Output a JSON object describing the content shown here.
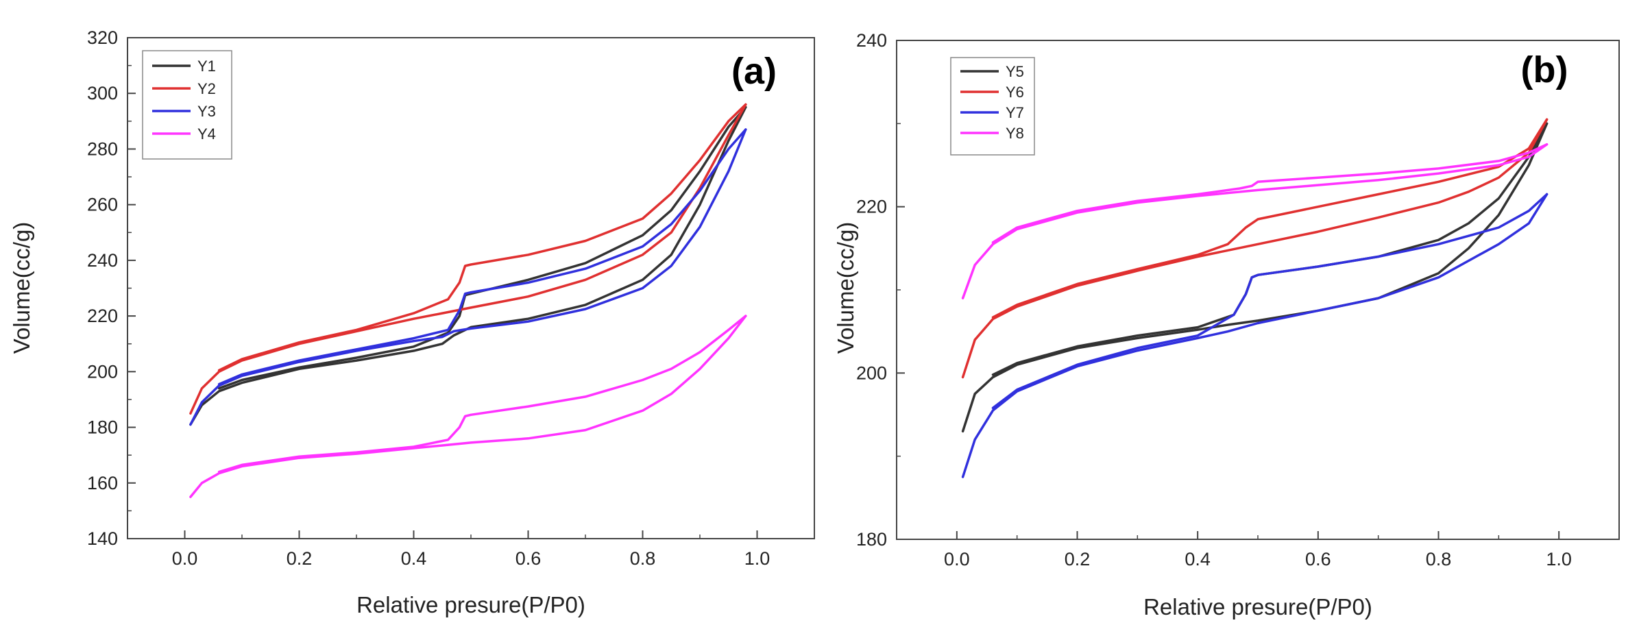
{
  "chart_data": [
    {
      "type": "line",
      "panel_label": "(a)",
      "xlabel": "Relative presure(P/P0)",
      "ylabel": "Volume(cc/g)",
      "xlim": [
        -0.1,
        1.1
      ],
      "ylim": [
        140,
        320
      ],
      "xticks": [
        "0.0",
        "0.2",
        "0.4",
        "0.6",
        "0.8",
        "1.0"
      ],
      "xtick_values": [
        0,
        0.2,
        0.4,
        0.6,
        0.8,
        1.0
      ],
      "yticks": [
        "140",
        "160",
        "180",
        "200",
        "220",
        "240",
        "260",
        "280",
        "300",
        "320"
      ],
      "ytick_values": [
        140,
        160,
        180,
        200,
        220,
        240,
        260,
        280,
        300,
        320
      ],
      "legend_position": "top-left",
      "series": [
        {
          "name": "Y1",
          "color": "#333333",
          "adsorption": [
            [
              0.01,
              181
            ],
            [
              0.03,
              188
            ],
            [
              0.06,
              193
            ],
            [
              0.1,
              196
            ],
            [
              0.2,
              201
            ],
            [
              0.3,
              204
            ],
            [
              0.4,
              207.5
            ],
            [
              0.45,
              210
            ],
            [
              0.47,
              213
            ],
            [
              0.5,
              216
            ],
            [
              0.6,
              219
            ],
            [
              0.7,
              224
            ],
            [
              0.8,
              233
            ],
            [
              0.85,
              242
            ],
            [
              0.9,
              260
            ],
            [
              0.95,
              283
            ],
            [
              0.98,
              295
            ]
          ],
          "desorption": [
            [
              0.98,
              295
            ],
            [
              0.95,
              288
            ],
            [
              0.9,
              272
            ],
            [
              0.85,
              258
            ],
            [
              0.8,
              249
            ],
            [
              0.7,
              239
            ],
            [
              0.6,
              233
            ],
            [
              0.5,
              228
            ],
            [
              0.49,
              227.5
            ],
            [
              0.48,
              220
            ],
            [
              0.46,
              214
            ],
            [
              0.4,
              209
            ],
            [
              0.3,
              205
            ],
            [
              0.2,
              201.5
            ],
            [
              0.1,
              197
            ],
            [
              0.06,
              194
            ]
          ]
        },
        {
          "name": "Y2",
          "color": "#e03030",
          "adsorption": [
            [
              0.01,
              185
            ],
            [
              0.03,
              194
            ],
            [
              0.06,
              200
            ],
            [
              0.1,
              204
            ],
            [
              0.2,
              210
            ],
            [
              0.3,
              214.5
            ],
            [
              0.4,
              219
            ],
            [
              0.45,
              221
            ],
            [
              0.5,
              223
            ],
            [
              0.6,
              227
            ],
            [
              0.7,
              233
            ],
            [
              0.8,
              242
            ],
            [
              0.85,
              250
            ],
            [
              0.9,
              266
            ],
            [
              0.95,
              285
            ],
            [
              0.98,
              296
            ]
          ],
          "desorption": [
            [
              0.98,
              296
            ],
            [
              0.95,
              290
            ],
            [
              0.9,
              276
            ],
            [
              0.85,
              264
            ],
            [
              0.8,
              255
            ],
            [
              0.7,
              247
            ],
            [
              0.6,
              242
            ],
            [
              0.5,
              238.5
            ],
            [
              0.49,
              238
            ],
            [
              0.48,
              232
            ],
            [
              0.46,
              226
            ],
            [
              0.4,
              221
            ],
            [
              0.3,
              215
            ],
            [
              0.2,
              210.5
            ],
            [
              0.1,
              204.5
            ],
            [
              0.06,
              200.5
            ]
          ]
        },
        {
          "name": "Y3",
          "color": "#3030dd",
          "adsorption": [
            [
              0.01,
              181
            ],
            [
              0.03,
              189
            ],
            [
              0.06,
              195
            ],
            [
              0.1,
              198.5
            ],
            [
              0.2,
              203.5
            ],
            [
              0.3,
              207.5
            ],
            [
              0.4,
              211
            ],
            [
              0.45,
              212.5
            ],
            [
              0.47,
              214.5
            ],
            [
              0.5,
              215.5
            ],
            [
              0.6,
              218
            ],
            [
              0.7,
              222.5
            ],
            [
              0.8,
              230
            ],
            [
              0.85,
              238
            ],
            [
              0.9,
              252
            ],
            [
              0.95,
              272
            ],
            [
              0.98,
              287
            ]
          ],
          "desorption": [
            [
              0.98,
              287
            ],
            [
              0.95,
              280
            ],
            [
              0.9,
              265
            ],
            [
              0.85,
              253
            ],
            [
              0.8,
              245
            ],
            [
              0.7,
              237
            ],
            [
              0.6,
              232
            ],
            [
              0.5,
              228.5
            ],
            [
              0.49,
              228
            ],
            [
              0.48,
              222
            ],
            [
              0.46,
              215
            ],
            [
              0.4,
              212
            ],
            [
              0.3,
              208
            ],
            [
              0.2,
              204
            ],
            [
              0.1,
              199
            ],
            [
              0.06,
              195.5
            ]
          ]
        },
        {
          "name": "Y4",
          "color": "#ff33ff",
          "adsorption": [
            [
              0.01,
              155
            ],
            [
              0.03,
              160
            ],
            [
              0.06,
              163.5
            ],
            [
              0.1,
              166
            ],
            [
              0.2,
              169
            ],
            [
              0.3,
              170.5
            ],
            [
              0.4,
              172.5
            ],
            [
              0.45,
              173.5
            ],
            [
              0.5,
              174.5
            ],
            [
              0.6,
              176
            ],
            [
              0.7,
              179
            ],
            [
              0.8,
              186
            ],
            [
              0.85,
              192
            ],
            [
              0.9,
              201
            ],
            [
              0.95,
              212
            ],
            [
              0.98,
              220
            ]
          ],
          "desorption": [
            [
              0.98,
              220
            ],
            [
              0.95,
              215
            ],
            [
              0.9,
              207
            ],
            [
              0.85,
              201
            ],
            [
              0.8,
              197
            ],
            [
              0.7,
              191
            ],
            [
              0.6,
              187.5
            ],
            [
              0.5,
              184.5
            ],
            [
              0.49,
              184
            ],
            [
              0.48,
              180
            ],
            [
              0.46,
              175.5
            ],
            [
              0.4,
              173
            ],
            [
              0.3,
              171
            ],
            [
              0.2,
              169.5
            ],
            [
              0.1,
              166.5
            ],
            [
              0.06,
              164
            ]
          ]
        }
      ]
    },
    {
      "type": "line",
      "panel_label": "(b)",
      "xlabel": "Relative presure(P/P0)",
      "ylabel": "Volume(cc/g)",
      "xlim": [
        -0.1,
        1.1
      ],
      "ylim": [
        180,
        240
      ],
      "xticks": [
        "0.0",
        "0.2",
        "0.4",
        "0.6",
        "0.8",
        "1.0"
      ],
      "xtick_values": [
        0,
        0.2,
        0.4,
        0.6,
        0.8,
        1.0
      ],
      "yticks": [
        "180",
        "200",
        "220",
        "240"
      ],
      "ytick_values": [
        180,
        200,
        220,
        240
      ],
      "legend_position": "top-left",
      "series": [
        {
          "name": "Y5",
          "color": "#333333",
          "adsorption": [
            [
              0.01,
              193
            ],
            [
              0.03,
              197.5
            ],
            [
              0.06,
              199.5
            ],
            [
              0.1,
              201
            ],
            [
              0.2,
              203
            ],
            [
              0.3,
              204.2
            ],
            [
              0.4,
              205.2
            ],
            [
              0.45,
              205.8
            ],
            [
              0.5,
              206.3
            ],
            [
              0.6,
              207.5
            ],
            [
              0.7,
              209
            ],
            [
              0.8,
              212
            ],
            [
              0.85,
              215
            ],
            [
              0.9,
              219
            ],
            [
              0.95,
              225
            ],
            [
              0.98,
              230
            ]
          ],
          "desorption": [
            [
              0.98,
              230
            ],
            [
              0.95,
              226
            ],
            [
              0.9,
              221
            ],
            [
              0.85,
              218
            ],
            [
              0.8,
              216
            ],
            [
              0.7,
              214
            ],
            [
              0.6,
              212.8
            ],
            [
              0.5,
              211.8
            ],
            [
              0.49,
              211.5
            ],
            [
              0.48,
              209.5
            ],
            [
              0.46,
              207
            ],
            [
              0.4,
              205.5
            ],
            [
              0.3,
              204.5
            ],
            [
              0.2,
              203.2
            ],
            [
              0.1,
              201.2
            ],
            [
              0.06,
              199.8
            ]
          ]
        },
        {
          "name": "Y6",
          "color": "#e03030",
          "adsorption": [
            [
              0.01,
              199.5
            ],
            [
              0.03,
              204
            ],
            [
              0.06,
              206.5
            ],
            [
              0.1,
              208
            ],
            [
              0.2,
              210.5
            ],
            [
              0.3,
              212.3
            ],
            [
              0.4,
              214
            ],
            [
              0.5,
              215.5
            ],
            [
              0.6,
              217
            ],
            [
              0.7,
              218.7
            ],
            [
              0.8,
              220.5
            ],
            [
              0.85,
              221.8
            ],
            [
              0.9,
              223.5
            ],
            [
              0.95,
              226.5
            ],
            [
              0.98,
              230.5
            ]
          ],
          "desorption": [
            [
              0.98,
              230.5
            ],
            [
              0.95,
              227
            ],
            [
              0.9,
              224.8
            ],
            [
              0.8,
              223
            ],
            [
              0.7,
              221.5
            ],
            [
              0.6,
              220
            ],
            [
              0.5,
              218.5
            ],
            [
              0.48,
              217.5
            ],
            [
              0.45,
              215.5
            ],
            [
              0.4,
              214.2
            ],
            [
              0.3,
              212.5
            ],
            [
              0.2,
              210.7
            ],
            [
              0.1,
              208.2
            ],
            [
              0.06,
              206.7
            ]
          ]
        },
        {
          "name": "Y7",
          "color": "#3030dd",
          "adsorption": [
            [
              0.01,
              187.5
            ],
            [
              0.03,
              192
            ],
            [
              0.06,
              195.5
            ],
            [
              0.1,
              197.8
            ],
            [
              0.2,
              200.8
            ],
            [
              0.3,
              202.7
            ],
            [
              0.4,
              204.2
            ],
            [
              0.45,
              205
            ],
            [
              0.5,
              206
            ],
            [
              0.6,
              207.5
            ],
            [
              0.7,
              209
            ],
            [
              0.8,
              211.5
            ],
            [
              0.85,
              213.5
            ],
            [
              0.9,
              215.5
            ],
            [
              0.95,
              218
            ],
            [
              0.98,
              221.5
            ]
          ],
          "desorption": [
            [
              0.98,
              221.5
            ],
            [
              0.95,
              219.5
            ],
            [
              0.9,
              217.5
            ],
            [
              0.8,
              215.5
            ],
            [
              0.7,
              214
            ],
            [
              0.6,
              212.8
            ],
            [
              0.5,
              211.8
            ],
            [
              0.49,
              211.5
            ],
            [
              0.48,
              209.5
            ],
            [
              0.46,
              207
            ],
            [
              0.4,
              204.5
            ],
            [
              0.3,
              203
            ],
            [
              0.2,
              201
            ],
            [
              0.1,
              198
            ],
            [
              0.06,
              195.8
            ]
          ]
        },
        {
          "name": "Y8",
          "color": "#ff33ff",
          "adsorption": [
            [
              0.01,
              209
            ],
            [
              0.03,
              213
            ],
            [
              0.06,
              215.5
            ],
            [
              0.1,
              217.3
            ],
            [
              0.2,
              219.3
            ],
            [
              0.3,
              220.5
            ],
            [
              0.4,
              221.3
            ],
            [
              0.5,
              222
            ],
            [
              0.6,
              222.6
            ],
            [
              0.7,
              223.2
            ],
            [
              0.8,
              224
            ],
            [
              0.9,
              225
            ],
            [
              0.95,
              226
            ],
            [
              0.98,
              227.5
            ]
          ],
          "desorption": [
            [
              0.98,
              227.5
            ],
            [
              0.95,
              226.5
            ],
            [
              0.9,
              225.5
            ],
            [
              0.8,
              224.6
            ],
            [
              0.7,
              224
            ],
            [
              0.6,
              223.5
            ],
            [
              0.5,
              223
            ],
            [
              0.49,
              222.5
            ],
            [
              0.47,
              222.2
            ],
            [
              0.4,
              221.5
            ],
            [
              0.3,
              220.7
            ],
            [
              0.2,
              219.5
            ],
            [
              0.1,
              217.5
            ],
            [
              0.06,
              215.7
            ]
          ]
        }
      ]
    }
  ]
}
